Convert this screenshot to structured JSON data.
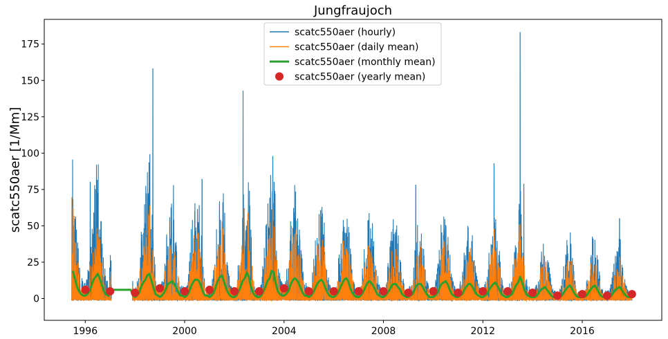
{
  "chart_data": {
    "type": "line",
    "title": "Jungfraujoch",
    "xlabel": "",
    "ylabel": "scatc550aer [1/Mm]",
    "xlim": [
      1994.35,
      2019.2
    ],
    "ylim": [
      -15,
      192
    ],
    "xticks": [
      1996,
      2000,
      2004,
      2008,
      2012,
      2016
    ],
    "yticks": [
      0,
      25,
      50,
      75,
      100,
      125,
      150,
      175
    ],
    "grid": false,
    "legend_position": "upper center",
    "series": [
      {
        "name": "scatc550aer (hourly)",
        "style": "line",
        "color": "#1f77b4",
        "x_range": [
          1995.45,
          2018.0
        ],
        "notable_peaks": [
          {
            "x": 1995.5,
            "y": 68
          },
          {
            "x": 1996.2,
            "y": 80
          },
          {
            "x": 1996.45,
            "y": 92
          },
          {
            "x": 1998.6,
            "y": 99
          },
          {
            "x": 1998.72,
            "y": 158
          },
          {
            "x": 1999.55,
            "y": 78
          },
          {
            "x": 2000.7,
            "y": 82
          },
          {
            "x": 2002.35,
            "y": 143
          },
          {
            "x": 2003.6,
            "y": 80
          },
          {
            "x": 2009.3,
            "y": 78
          },
          {
            "x": 2012.45,
            "y": 93
          },
          {
            "x": 2013.5,
            "y": 183
          },
          {
            "x": 2013.65,
            "y": 79
          },
          {
            "x": 2017.5,
            "y": 55
          }
        ]
      },
      {
        "name": "scatc550aer (daily mean)",
        "style": "line",
        "color": "#ff7f0e",
        "x_range": [
          1995.45,
          2018.0
        ],
        "notable_peaks": [
          {
            "x": 1998.6,
            "y": 64
          },
          {
            "x": 2002.4,
            "y": 62
          },
          {
            "x": 2004.3,
            "y": 50
          },
          {
            "x": 2012.45,
            "y": 48
          },
          {
            "x": 2013.5,
            "y": 51
          }
        ]
      },
      {
        "name": "scatc550aer (monthly mean)",
        "style": "line",
        "color": "#2ca02c",
        "x": [
          1995.5,
          1995.58,
          1995.67,
          1995.75,
          1995.83,
          1995.92,
          1996.0,
          1996.08,
          1996.17,
          1996.25,
          1996.33,
          1996.42,
          1996.5,
          1996.58,
          1996.67,
          1996.75,
          1996.83,
          1996.92,
          1997.0,
          1997.08,
          1997.17,
          1997.25,
          1997.33,
          1997.42,
          1997.5,
          1997.58,
          1997.67,
          1997.75,
          1997.83,
          1997.92,
          1998.0,
          1998.08,
          1998.17,
          1998.25,
          1998.33,
          1998.42,
          1998.5,
          1998.58,
          1998.67,
          1998.75,
          1998.83,
          1998.92,
          1999.0,
          1999.08,
          1999.17,
          1999.25,
          1999.33,
          1999.42,
          1999.5,
          1999.58,
          1999.67,
          1999.75,
          1999.83,
          1999.92,
          2000.0,
          2000.08,
          2000.17,
          2000.25,
          2000.33,
          2000.42,
          2000.5,
          2000.58,
          2000.67,
          2000.75,
          2000.83,
          2000.92,
          2001.0,
          2001.08,
          2001.17,
          2001.25,
          2001.33,
          2001.42,
          2001.5,
          2001.58,
          2001.67,
          2001.75,
          2001.83,
          2001.92,
          2002.0,
          2002.08,
          2002.17,
          2002.25,
          2002.33,
          2002.42,
          2002.5,
          2002.58,
          2002.67,
          2002.75,
          2002.83,
          2002.92,
          2003.0,
          2003.08,
          2003.17,
          2003.25,
          2003.33,
          2003.42,
          2003.5,
          2003.58,
          2003.67,
          2003.75,
          2003.83,
          2003.92,
          2004.0,
          2004.08,
          2004.17,
          2004.25,
          2004.33,
          2004.42,
          2004.5,
          2004.58,
          2004.67,
          2004.75,
          2004.83,
          2004.92,
          2005.0,
          2005.08,
          2005.17,
          2005.25,
          2005.33,
          2005.42,
          2005.5,
          2005.58,
          2005.67,
          2005.75,
          2005.83,
          2005.92,
          2006.0,
          2006.08,
          2006.17,
          2006.25,
          2006.33,
          2006.42,
          2006.5,
          2006.58,
          2006.67,
          2006.75,
          2006.83,
          2006.92,
          2007.0,
          2007.08,
          2007.17,
          2007.25,
          2007.33,
          2007.42,
          2007.5,
          2007.58,
          2007.67,
          2007.75,
          2007.83,
          2007.92,
          2008.0,
          2008.08,
          2008.17,
          2008.25,
          2008.33,
          2008.42,
          2008.5,
          2008.58,
          2008.67,
          2008.75,
          2008.83,
          2008.92,
          2009.0,
          2009.08,
          2009.17,
          2009.25,
          2009.33,
          2009.42,
          2009.5,
          2009.58,
          2009.67,
          2009.75,
          2009.83,
          2009.92,
          2010.0,
          2010.08,
          2010.17,
          2010.25,
          2010.33,
          2010.42,
          2010.5,
          2010.58,
          2010.67,
          2010.75,
          2010.83,
          2010.92,
          2011.0,
          2011.08,
          2011.17,
          2011.25,
          2011.33,
          2011.42,
          2011.5,
          2011.58,
          2011.67,
          2011.75,
          2011.83,
          2011.92,
          2012.0,
          2012.08,
          2012.17,
          2012.25,
          2012.33,
          2012.42,
          2012.5,
          2012.58,
          2012.67,
          2012.75,
          2012.83,
          2012.92,
          2013.0,
          2013.08,
          2013.17,
          2013.25,
          2013.33,
          2013.42,
          2013.5,
          2013.58,
          2013.67,
          2013.75,
          2013.83,
          2013.92,
          2014.0,
          2014.08,
          2014.17,
          2014.25,
          2014.33,
          2014.42,
          2014.5,
          2014.58,
          2014.67,
          2014.75,
          2014.83,
          2014.92,
          2015.0,
          2015.08,
          2015.17,
          2015.25,
          2015.33,
          2015.42,
          2015.5,
          2015.58,
          2015.67,
          2015.75,
          2015.83,
          2015.92,
          2016.0,
          2016.08,
          2016.17,
          2016.25,
          2016.33,
          2016.42,
          2016.5,
          2016.58,
          2016.67,
          2016.75,
          2016.83,
          2016.92,
          2017.0,
          2017.08,
          2017.17,
          2017.25,
          2017.33,
          2017.42,
          2017.5,
          2017.58,
          2017.67,
          2017.75,
          2017.83,
          2017.92
        ],
        "y": [
          19,
          14,
          8,
          5,
          3,
          2,
          2,
          3,
          5,
          9,
          13,
          15,
          17,
          14,
          9,
          5,
          3,
          2,
          6,
          6,
          6,
          6,
          6,
          6,
          6,
          6,
          6,
          6,
          6,
          2,
          1,
          2,
          4,
          8,
          11,
          13,
          16,
          17,
          12,
          7,
          3,
          2,
          1,
          2,
          4,
          7,
          10,
          11,
          12,
          10,
          7,
          4,
          2,
          2,
          1,
          2,
          4,
          8,
          11,
          13,
          13,
          12,
          8,
          4,
          2,
          2,
          1,
          2,
          4,
          8,
          12,
          15,
          16,
          12,
          7,
          4,
          2,
          1,
          1,
          2,
          5,
          8,
          12,
          14,
          18,
          15,
          8,
          4,
          2,
          1,
          1,
          2,
          5,
          8,
          12,
          14,
          19,
          18,
          10,
          5,
          3,
          2,
          2,
          3,
          5,
          9,
          12,
          14,
          13,
          11,
          7,
          4,
          2,
          2,
          1,
          2,
          4,
          7,
          10,
          12,
          13,
          11,
          7,
          4,
          2,
          1,
          1,
          2,
          4,
          7,
          10,
          13,
          14,
          12,
          7,
          4,
          2,
          1,
          1,
          2,
          4,
          7,
          10,
          12,
          11,
          9,
          6,
          3,
          2,
          1,
          1,
          2,
          4,
          6,
          9,
          10,
          10,
          8,
          6,
          3,
          2,
          1,
          1,
          2,
          3,
          6,
          9,
          10,
          10,
          8,
          5,
          3,
          1,
          1,
          1,
          2,
          4,
          7,
          10,
          11,
          12,
          10,
          6,
          3,
          2,
          1,
          1,
          2,
          3,
          6,
          8,
          10,
          10,
          8,
          5,
          3,
          2,
          1,
          1,
          2,
          3,
          6,
          8,
          10,
          11,
          9,
          6,
          3,
          2,
          1,
          1,
          2,
          3,
          6,
          9,
          11,
          15,
          11,
          6,
          3,
          2,
          1,
          1,
          1,
          2,
          4,
          6,
          7,
          8,
          6,
          4,
          2,
          1,
          1,
          1,
          1,
          2,
          4,
          6,
          8,
          9,
          7,
          4,
          2,
          1,
          1,
          1,
          1,
          2,
          4,
          6,
          8,
          9,
          7,
          4,
          2,
          1,
          1,
          1,
          1,
          2,
          4,
          6,
          7,
          8,
          6,
          4,
          2,
          1,
          1
        ]
      },
      {
        "name": "scatc550aer (yearly mean)",
        "style": "markers",
        "color": "#d62728",
        "x": [
          1996.0,
          1997.0,
          1998.0,
          1999.0,
          2000.0,
          2001.0,
          2002.0,
          2003.0,
          2004.0,
          2005.0,
          2006.0,
          2007.0,
          2008.0,
          2009.0,
          2010.0,
          2011.0,
          2012.0,
          2013.0,
          2014.0,
          2015.0,
          2016.0,
          2017.0,
          2018.0
        ],
        "y": [
          6,
          5,
          4,
          7,
          5,
          6,
          5,
          5,
          7,
          5,
          5,
          5,
          5,
          4,
          5,
          4,
          5,
          5,
          4,
          2,
          3,
          2,
          3
        ]
      }
    ]
  }
}
